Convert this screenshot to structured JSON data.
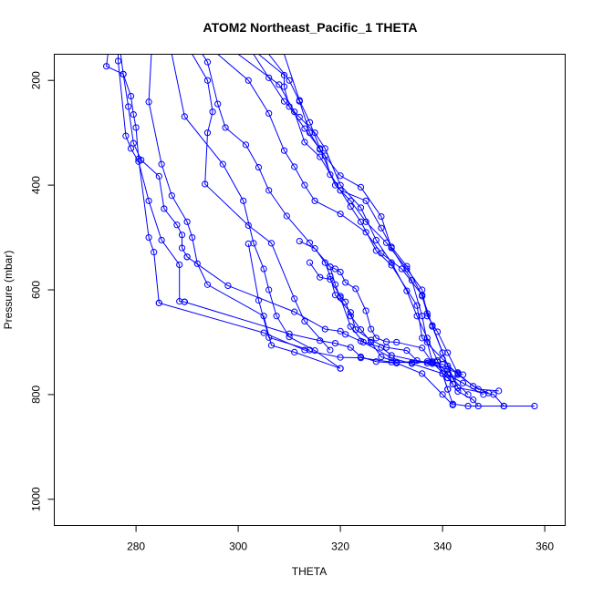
{
  "chart_data": {
    "type": "scatter",
    "title": "ATOM2 Northeast_Pacific_1 THETA",
    "xlabel": "THETA",
    "ylabel": "Pressure (mbar)",
    "xlim": [
      264,
      364
    ],
    "ylim": [
      1050,
      150
    ],
    "y_reversed": true,
    "x_ticks": [
      280,
      300,
      320,
      340,
      360
    ],
    "y_ticks": [
      200,
      400,
      600,
      800,
      1000
    ],
    "grid": false,
    "legend": "none",
    "color": "#0000ff",
    "series": [
      {
        "points": [
          [
            274.5,
            150
          ],
          [
            274.2,
            173
          ],
          [
            277.5,
            188
          ],
          [
            279,
            230
          ],
          [
            279.5,
            265
          ],
          [
            280,
            290
          ],
          [
            280.5,
            350
          ],
          [
            282.5,
            500
          ],
          [
            283.5,
            528
          ],
          [
            284.5,
            625
          ]
        ]
      },
      {
        "points": [
          [
            277,
            150
          ],
          [
            277.5,
            188
          ],
          [
            278.5,
            250
          ],
          [
            279.5,
            320
          ],
          [
            281,
            352
          ],
          [
            284.5,
            383
          ],
          [
            285.5,
            445
          ],
          [
            288,
            476
          ],
          [
            289,
            495
          ],
          [
            289,
            520
          ],
          [
            290,
            537
          ]
        ]
      },
      {
        "points": [
          [
            276.5,
            150
          ],
          [
            276.5,
            163
          ],
          [
            278,
            306
          ],
          [
            279,
            330
          ],
          [
            280.5,
            355
          ],
          [
            282.5,
            430
          ],
          [
            285,
            505
          ],
          [
            288.5,
            552
          ],
          [
            288.5,
            622
          ],
          [
            289.5,
            623
          ]
        ]
      },
      {
        "points": [
          [
            283,
            150
          ],
          [
            282.5,
            241
          ],
          [
            285,
            360
          ],
          [
            287,
            420
          ],
          [
            290,
            470
          ],
          [
            291,
            500
          ],
          [
            292,
            550
          ],
          [
            294,
            590
          ],
          [
            305,
            650
          ],
          [
            306.5,
            706
          ],
          [
            311,
            719
          ],
          [
            320,
            750
          ]
        ]
      },
      {
        "points": [
          [
            287,
            150
          ],
          [
            289.5,
            269
          ],
          [
            297,
            360
          ],
          [
            301,
            430
          ],
          [
            303,
            511
          ],
          [
            305,
            560
          ],
          [
            306,
            600
          ],
          [
            307.5,
            650
          ],
          [
            310,
            690
          ],
          [
            315,
            716
          ],
          [
            320,
            750
          ]
        ]
      },
      {
        "points": [
          [
            291,
            150
          ],
          [
            294,
            200
          ],
          [
            295,
            260
          ],
          [
            294,
            300
          ],
          [
            293.5,
            398
          ],
          [
            302,
            477
          ],
          [
            306.5,
            511
          ],
          [
            311,
            617
          ],
          [
            313,
            660
          ],
          [
            318,
            715
          ]
        ]
      },
      {
        "points": [
          [
            293,
            150
          ],
          [
            294,
            165
          ],
          [
            296,
            245
          ],
          [
            297.5,
            290
          ],
          [
            301.5,
            323
          ],
          [
            304,
            366
          ],
          [
            306,
            410
          ],
          [
            309.5,
            459
          ],
          [
            314,
            510
          ],
          [
            318,
            556
          ],
          [
            319,
            590
          ],
          [
            320,
            615
          ],
          [
            322,
            670
          ],
          [
            324.5,
            700
          ],
          [
            330,
            730
          ],
          [
            334,
            741
          ],
          [
            340,
            760
          ]
        ]
      },
      {
        "points": [
          [
            296,
            150
          ],
          [
            302,
            200
          ],
          [
            306,
            263
          ],
          [
            309,
            334
          ],
          [
            311,
            365
          ],
          [
            313,
            400
          ],
          [
            315,
            430
          ],
          [
            320,
            455
          ],
          [
            325,
            490
          ],
          [
            328,
            530
          ],
          [
            332,
            560
          ],
          [
            336,
            610
          ],
          [
            338,
            670
          ],
          [
            340,
            720
          ],
          [
            342,
            770
          ],
          [
            345,
            800
          ]
        ]
      },
      {
        "points": [
          [
            300,
            150
          ],
          [
            308,
            208
          ],
          [
            311,
            260
          ],
          [
            313,
            318
          ],
          [
            316,
            346
          ],
          [
            320,
            410
          ],
          [
            325,
            430
          ],
          [
            328,
            482
          ],
          [
            330,
            518
          ],
          [
            333,
            555
          ],
          [
            336,
            612
          ],
          [
            337,
            645
          ],
          [
            338,
            668
          ],
          [
            341,
            745
          ],
          [
            343,
            787
          ],
          [
            350,
            800
          ],
          [
            352,
            822
          ],
          [
            358,
            822
          ]
        ]
      },
      {
        "points": [
          [
            304,
            150
          ],
          [
            309,
            190
          ],
          [
            309,
            212
          ],
          [
            310,
            250
          ],
          [
            313,
            292
          ],
          [
            317,
            344
          ],
          [
            318,
            380
          ],
          [
            320,
            410
          ],
          [
            322,
            441
          ],
          [
            324,
            470
          ],
          [
            327,
            525
          ],
          [
            330,
            553
          ],
          [
            335,
            630
          ],
          [
            336,
            692
          ],
          [
            340,
            732
          ],
          [
            343,
            762
          ],
          [
            347,
            790
          ],
          [
            351,
            793
          ]
        ]
      },
      {
        "points": [
          [
            306,
            150
          ],
          [
            310,
            200
          ],
          [
            312,
            240
          ],
          [
            314,
            300
          ],
          [
            316,
            332
          ],
          [
            320,
            382
          ],
          [
            324,
            404
          ],
          [
            328,
            460
          ],
          [
            330,
            520
          ],
          [
            334,
            582
          ],
          [
            336,
            650
          ],
          [
            337,
            700
          ],
          [
            338,
            737
          ],
          [
            341,
            762
          ],
          [
            344,
            778
          ],
          [
            348,
            800
          ]
        ]
      },
      {
        "points": [
          [
            309,
            150
          ],
          [
            312,
            238
          ],
          [
            314,
            280
          ],
          [
            316,
            330
          ],
          [
            319,
            400
          ],
          [
            322,
            430
          ],
          [
            325,
            470
          ],
          [
            329,
            510
          ],
          [
            333,
            560
          ],
          [
            336,
            600
          ],
          [
            337,
            650
          ],
          [
            339,
            680
          ],
          [
            341,
            720
          ],
          [
            343,
            760
          ],
          [
            346,
            784
          ],
          [
            349,
            797
          ]
        ]
      },
      {
        "points": [
          [
            303,
            150
          ],
          [
            306,
            195
          ],
          [
            309,
            240
          ],
          [
            312,
            270
          ],
          [
            315,
            300
          ],
          [
            317,
            330
          ],
          [
            320,
            400
          ],
          [
            324,
            443
          ],
          [
            327,
            505
          ],
          [
            330,
            548
          ],
          [
            333,
            602
          ],
          [
            335,
            650
          ],
          [
            337,
            692
          ],
          [
            339,
            735
          ],
          [
            340,
            760
          ],
          [
            341,
            790
          ]
        ]
      },
      {
        "points": [
          [
            284.5,
            625
          ],
          [
            305,
            682
          ],
          [
            313,
            715
          ],
          [
            320,
            729
          ],
          [
            324,
            730
          ],
          [
            330,
            738
          ],
          [
            334,
            739
          ],
          [
            339,
            738
          ],
          [
            341,
            760
          ],
          [
            342,
            780
          ]
        ]
      },
      {
        "points": [
          [
            290,
            537
          ],
          [
            298,
            592
          ],
          [
            311,
            642
          ],
          [
            317,
            675
          ],
          [
            320,
            679
          ],
          [
            321,
            685
          ],
          [
            324,
            698
          ],
          [
            328,
            710
          ],
          [
            330,
            725
          ],
          [
            337,
            740
          ],
          [
            341,
            752
          ],
          [
            344,
            762
          ]
        ]
      },
      {
        "points": [
          [
            289.5,
            623
          ],
          [
            310,
            684
          ],
          [
            316,
            697
          ],
          [
            319,
            702
          ],
          [
            322,
            710
          ],
          [
            324,
            728
          ],
          [
            327,
            737
          ],
          [
            331,
            740
          ],
          [
            336,
            760
          ],
          [
            340,
            800
          ],
          [
            342,
            820
          ]
        ]
      },
      {
        "points": [
          [
            302,
            512
          ],
          [
            304,
            620
          ],
          [
            306,
            691
          ],
          [
            314,
            715
          ]
        ]
      },
      {
        "points": [
          [
            314,
            548
          ],
          [
            316,
            576
          ],
          [
            318,
            580
          ],
          [
            320,
            612
          ],
          [
            321,
            623
          ],
          [
            322,
            650
          ],
          [
            324,
            676
          ],
          [
            326,
            700
          ],
          [
            328,
            728
          ],
          [
            331,
            738
          ],
          [
            337,
            737
          ],
          [
            340,
            742
          ],
          [
            343,
            758
          ]
        ]
      },
      {
        "points": [
          [
            312,
            507
          ],
          [
            315,
            521
          ],
          [
            317,
            548
          ],
          [
            318,
            574
          ],
          [
            319,
            610
          ],
          [
            322,
            643
          ],
          [
            323,
            676
          ],
          [
            326,
            696
          ],
          [
            329,
            710
          ],
          [
            333,
            716
          ],
          [
            335,
            735
          ],
          [
            338,
            741
          ]
        ]
      },
      {
        "points": [
          [
            318,
            556
          ],
          [
            319,
            560
          ],
          [
            320,
            566
          ],
          [
            321,
            586
          ],
          [
            323,
            598
          ],
          [
            325,
            640
          ],
          [
            326,
            675
          ],
          [
            327,
            692
          ],
          [
            329,
            699
          ],
          [
            331,
            700
          ],
          [
            336,
            711
          ],
          [
            338,
            739
          ],
          [
            341,
            768
          ],
          [
            342,
            780
          ]
        ]
      },
      {
        "points": [
          [
            340,
            760
          ],
          [
            341,
            790
          ],
          [
            342,
            818
          ],
          [
            345,
            822
          ],
          [
            352,
            822
          ]
        ]
      },
      {
        "points": [
          [
            341,
            768
          ],
          [
            343,
            794
          ],
          [
            346,
            810
          ],
          [
            347,
            822
          ],
          [
            352,
            822
          ]
        ]
      }
    ]
  }
}
